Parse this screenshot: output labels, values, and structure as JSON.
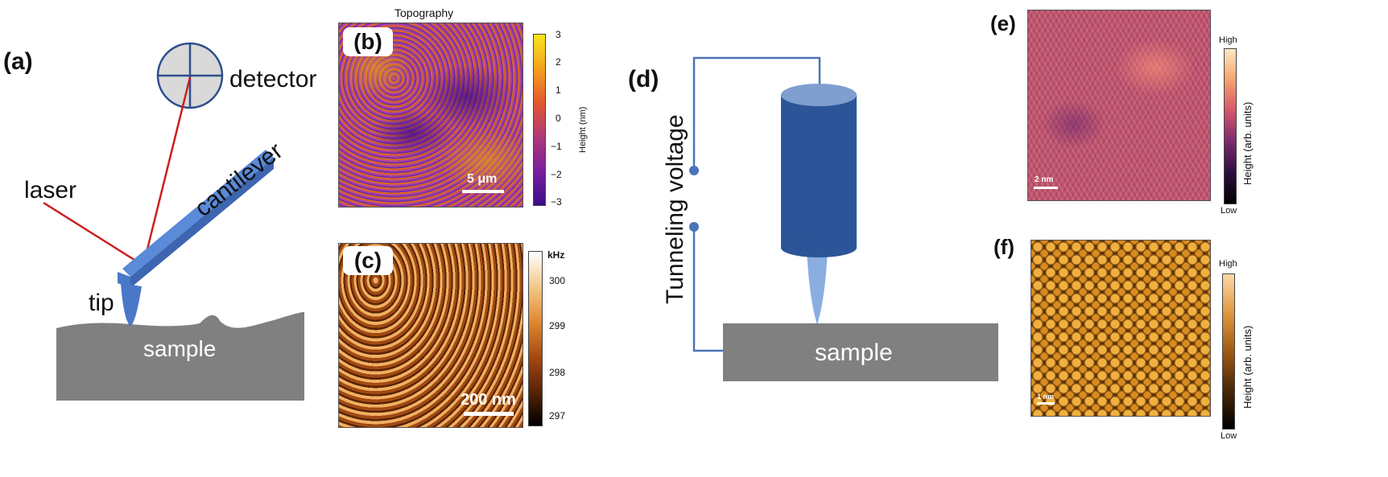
{
  "panel_a": {
    "label": "(a)",
    "detector_label": "detector",
    "laser_label": "laser",
    "cantilever_label": "cantilever",
    "tip_label": "tip",
    "sample_label": "sample",
    "colors": {
      "cantilever": "#4a78c8",
      "laser": "#cc1f1f",
      "sample": "#808080",
      "detector_fill": "#d9d9d9"
    }
  },
  "panel_b": {
    "title": "Topography",
    "label": "(b)",
    "scale_bar": "5 μm",
    "colorbar_label": "Height (nm)",
    "colorbar_ticks": [
      "3",
      "2",
      "1",
      "0",
      "−1",
      "−2",
      "−3"
    ]
  },
  "panel_c": {
    "label": "(c)",
    "scale_bar": "200 nm",
    "colorbar_unit": "kHz",
    "colorbar_ticks": [
      "300",
      "299",
      "298",
      "297"
    ]
  },
  "panel_d": {
    "label": "(d)",
    "voltage_label": "Tunneling voltage",
    "sample_label": "sample",
    "colors": {
      "tip_body": "#2c5599",
      "tip_top": "#7f9fd0",
      "tip_needle": "#8aaee0",
      "wire": "#4a74b8",
      "sample": "#808080"
    }
  },
  "panel_e": {
    "label": "(e)",
    "scale_bar": "2 nm",
    "colorbar_high": "High",
    "colorbar_low": "Low",
    "colorbar_label": "Height (arb. units)"
  },
  "panel_f": {
    "label": "(f)",
    "scale_bar": "1 nm",
    "colorbar_high": "High",
    "colorbar_low": "Low",
    "colorbar_label": "Height (arb. units)"
  }
}
